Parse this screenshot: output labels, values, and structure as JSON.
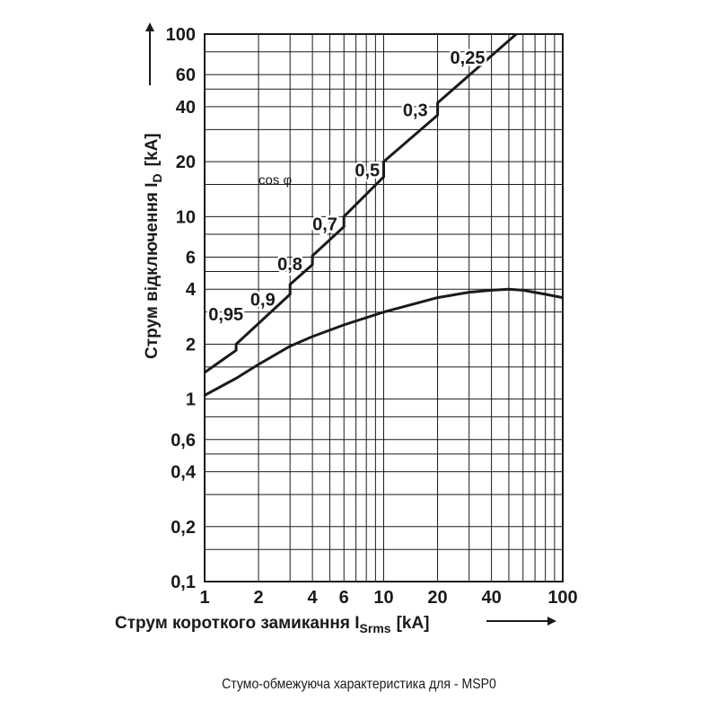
{
  "chart_data": {
    "type": "line",
    "x_scale": "log",
    "y_scale": "log",
    "xlim": [
      1,
      100
    ],
    "ylim": [
      0.1,
      100
    ],
    "grid": true,
    "x_ticks": [
      1,
      2,
      4,
      6,
      10,
      20,
      40,
      100
    ],
    "x_tick_labels": [
      "1",
      "2",
      "4",
      "6",
      "10",
      "20",
      "40",
      "100"
    ],
    "y_ticks": [
      0.1,
      0.2,
      0.4,
      0.6,
      1,
      2,
      4,
      6,
      10,
      20,
      40,
      60,
      100
    ],
    "y_tick_labels": [
      "0,1",
      "0,2",
      "0,4",
      "0,6",
      "1",
      "2",
      "4",
      "6",
      "10",
      "20",
      "40",
      "60",
      "100"
    ],
    "x_grid": [
      1,
      2,
      3,
      4,
      5,
      6,
      7,
      8,
      9,
      10,
      20,
      30,
      40,
      50,
      60,
      70,
      80,
      90,
      100
    ],
    "y_grid": [
      0.1,
      0.15,
      0.2,
      0.3,
      0.4,
      0.5,
      0.6,
      0.8,
      1,
      1.5,
      2,
      3,
      4,
      5,
      6,
      8,
      10,
      15,
      20,
      30,
      40,
      50,
      60,
      80,
      100
    ],
    "xlabel": "Струм короткого замикання I",
    "xlabel_sub": "Srms",
    "xlabel_unit": "[kA]",
    "ylabel": "Струм відключення I",
    "ylabel_sub": "D",
    "ylabel_unit": "[kA]",
    "series": [
      {
        "id": "peak",
        "points": [
          [
            1,
            1.4
          ],
          [
            1.5,
            1.85
          ],
          [
            1.5,
            2.0
          ],
          [
            3,
            3.75
          ],
          [
            3,
            4.25
          ],
          [
            4,
            5.45
          ],
          [
            4,
            6.1
          ],
          [
            6,
            8.8
          ],
          [
            6,
            10
          ],
          [
            10,
            16.5
          ],
          [
            10,
            20
          ],
          [
            20,
            36
          ],
          [
            20,
            42
          ],
          [
            55,
            100
          ]
        ]
      },
      {
        "id": "limited",
        "points": [
          [
            1,
            1.05
          ],
          [
            1.5,
            1.3
          ],
          [
            2,
            1.55
          ],
          [
            3,
            1.95
          ],
          [
            4,
            2.2
          ],
          [
            6,
            2.55
          ],
          [
            10,
            3.0
          ],
          [
            20,
            3.6
          ],
          [
            30,
            3.85
          ],
          [
            40,
            3.95
          ],
          [
            50,
            4.0
          ],
          [
            60,
            3.95
          ],
          [
            80,
            3.75
          ],
          [
            100,
            3.6
          ]
        ]
      }
    ],
    "annotations": [
      {
        "text": "0,95",
        "x": 1.05,
        "y": 2.7
      },
      {
        "text": "0,9",
        "x": 1.8,
        "y": 3.25
      },
      {
        "text": "0,8",
        "x": 2.55,
        "y": 5.1
      },
      {
        "text": "0,7",
        "x": 4.0,
        "y": 8.4
      },
      {
        "text": "0,5",
        "x": 6.9,
        "y": 16.6
      },
      {
        "text": "0,3",
        "x": 12.8,
        "y": 35.5
      },
      {
        "text": "0,25",
        "x": 23.5,
        "y": 69
      }
    ],
    "cos_phi_label": {
      "text": "cos φ",
      "x": 2.0,
      "y": 15
    }
  },
  "caption": "Стумо-обмежуюча характеристика для - MSP0"
}
